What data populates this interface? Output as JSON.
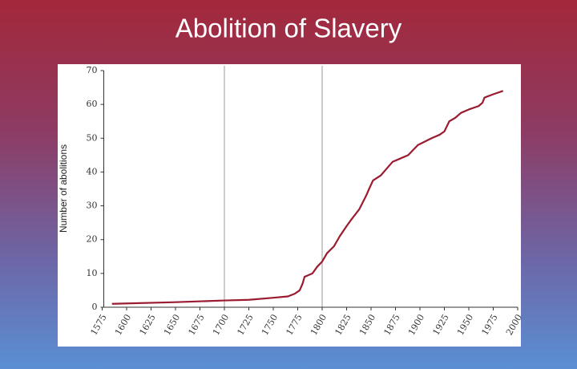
{
  "chart_data": {
    "type": "line",
    "title": "Abolition of Slavery",
    "y_label": "Number of abolitions",
    "x": [
      1585,
      1650,
      1700,
      1725,
      1750,
      1765,
      1772,
      1777,
      1780,
      1782,
      1790,
      1795,
      1800,
      1805,
      1812,
      1818,
      1825,
      1830,
      1838,
      1845,
      1848,
      1852,
      1860,
      1866,
      1872,
      1880,
      1888,
      1893,
      1898,
      1905,
      1912,
      1920,
      1925,
      1930,
      1936,
      1942,
      1950,
      1960,
      1964,
      1966,
      1975,
      1985
    ],
    "series": [
      {
        "name": "Number of abolitions",
        "color": "#9b1b30",
        "values": [
          1,
          1.5,
          2,
          2.2,
          2.8,
          3.2,
          4,
          5,
          7,
          9,
          10,
          12,
          13.5,
          16,
          18,
          21,
          24,
          26,
          29,
          33,
          35,
          37.5,
          39,
          41,
          43,
          44,
          45,
          46.5,
          48,
          49,
          50,
          51,
          52,
          55,
          56,
          57.5,
          58.5,
          59.5,
          60.5,
          62,
          63,
          64
        ]
      }
    ],
    "vlines": [
      1700,
      1800
    ],
    "xlim": [
      1575,
      2000
    ],
    "xticks": [
      1575,
      1600,
      1625,
      1650,
      1675,
      1700,
      1725,
      1750,
      1775,
      1800,
      1825,
      1850,
      1875,
      1900,
      1925,
      1950,
      1975,
      2000
    ],
    "ylim": [
      0,
      70
    ],
    "yticks": [
      0,
      10,
      20,
      30,
      40,
      50,
      60,
      70
    ]
  }
}
